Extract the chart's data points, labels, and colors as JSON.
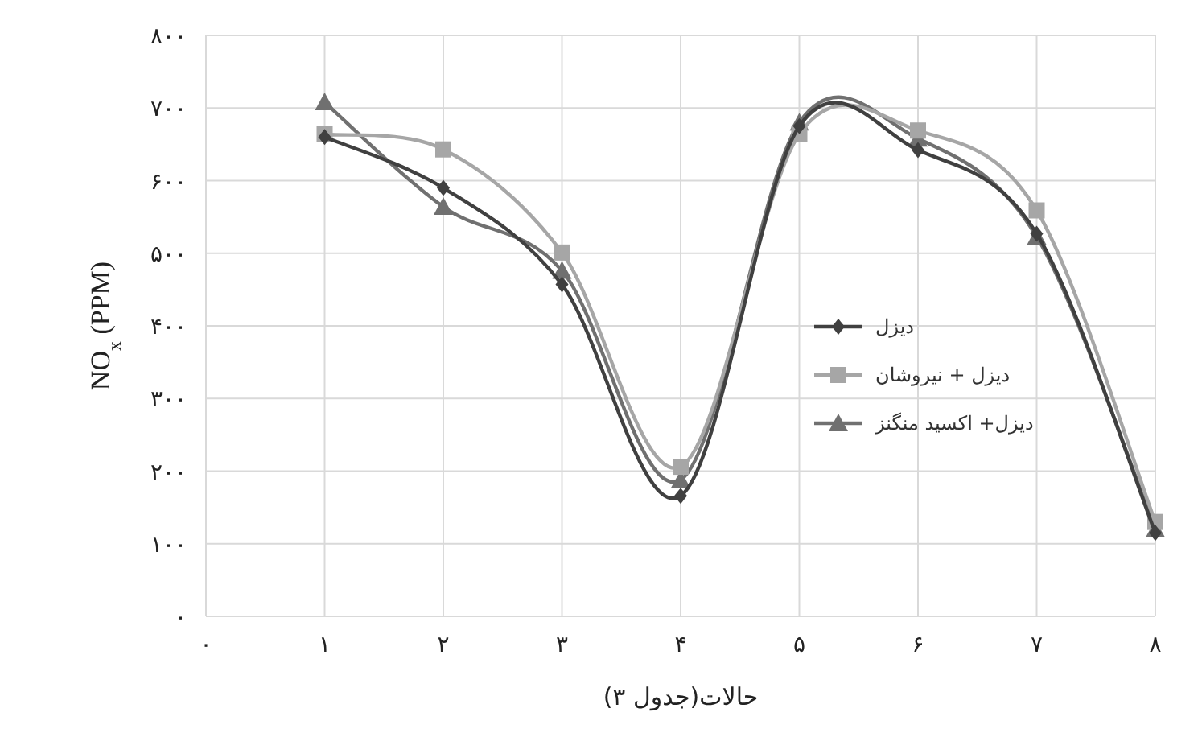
{
  "chart_data": {
    "type": "line",
    "xlabel": "حالات(جدول ۳)",
    "ylabel": "NO$_{x}$  (PPM)",
    "x": [
      1,
      2,
      3,
      4,
      5,
      6,
      7,
      8
    ],
    "series": [
      {
        "name": "دیزل",
        "color": "#404040",
        "marker": "diamond",
        "values": [
          660,
          590,
          457,
          166,
          675,
          642,
          527,
          115
        ]
      },
      {
        "name": "دیزل + نیروشان",
        "color": "#a6a6a6",
        "marker": "square",
        "values": [
          664,
          643,
          501,
          206,
          664,
          669,
          559,
          130
        ]
      },
      {
        "name": "دیزل+ اکسید منگنز",
        "color": "#707070",
        "marker": "triangle",
        "values": [
          708,
          564,
          476,
          188,
          680,
          658,
          523,
          120
        ]
      }
    ],
    "xlim": [
      0,
      8
    ],
    "ylim": [
      0,
      800
    ],
    "xticks": [
      {
        "value": 0,
        "label": "۰"
      },
      {
        "value": 1,
        "label": "۱"
      },
      {
        "value": 2,
        "label": "۲"
      },
      {
        "value": 3,
        "label": "۳"
      },
      {
        "value": 4,
        "label": "۴"
      },
      {
        "value": 5,
        "label": "۵"
      },
      {
        "value": 6,
        "label": "۶"
      },
      {
        "value": 7,
        "label": "۷"
      },
      {
        "value": 8,
        "label": "۸"
      }
    ],
    "yticks": [
      {
        "value": 0,
        "label": "۰"
      },
      {
        "value": 100,
        "label": "۱۰۰"
      },
      {
        "value": 200,
        "label": "۲۰۰"
      },
      {
        "value": 300,
        "label": "۳۰۰"
      },
      {
        "value": 400,
        "label": "۴۰۰"
      },
      {
        "value": 500,
        "label": "۵۰۰"
      },
      {
        "value": 600,
        "label": "۶۰۰"
      },
      {
        "value": 700,
        "label": "۷۰۰"
      },
      {
        "value": 800,
        "label": "۸۰۰"
      }
    ],
    "grid": true,
    "legend": "right",
    "line_style": "solid"
  }
}
